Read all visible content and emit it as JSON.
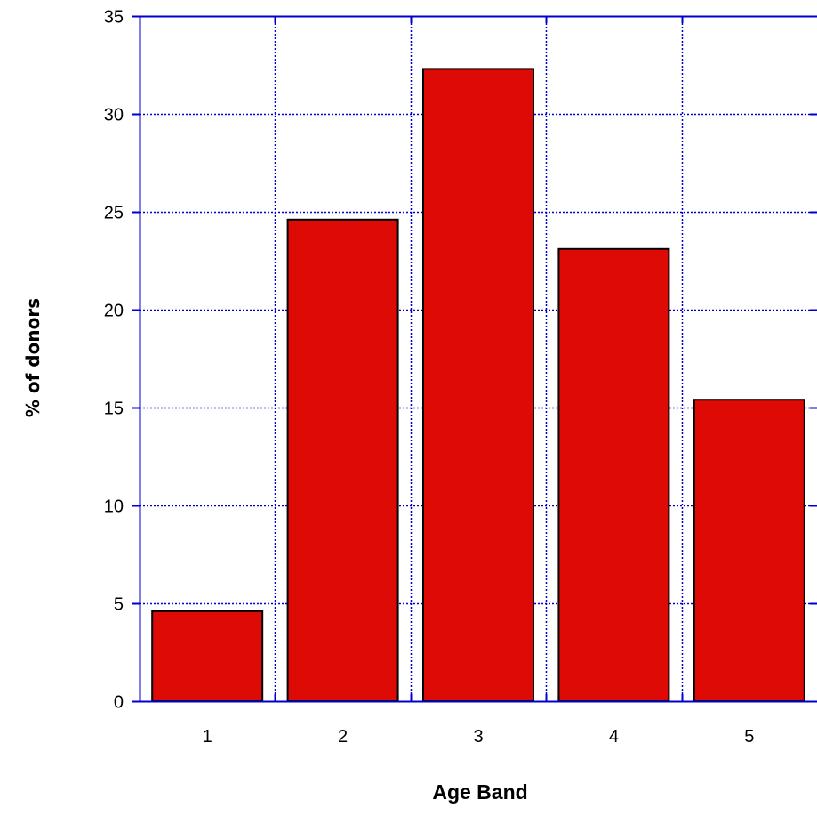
{
  "chart_data": {
    "type": "bar",
    "title": "",
    "xlabel": "Age Band",
    "ylabel": "% of donors",
    "categories": [
      "1",
      "2",
      "3",
      "4",
      "5"
    ],
    "values": [
      4.6,
      24.6,
      32.3,
      23.1,
      15.4
    ],
    "ylim": [
      0,
      35
    ],
    "yticks": [
      "0",
      "5",
      "10",
      "15",
      "20",
      "25",
      "30",
      "35"
    ],
    "grid": true,
    "legend": "none",
    "colors": {
      "bar_fill": "#dd0a05",
      "bar_stroke": "#000000",
      "grid": "#0000cc",
      "axis": "#0000cc"
    }
  }
}
